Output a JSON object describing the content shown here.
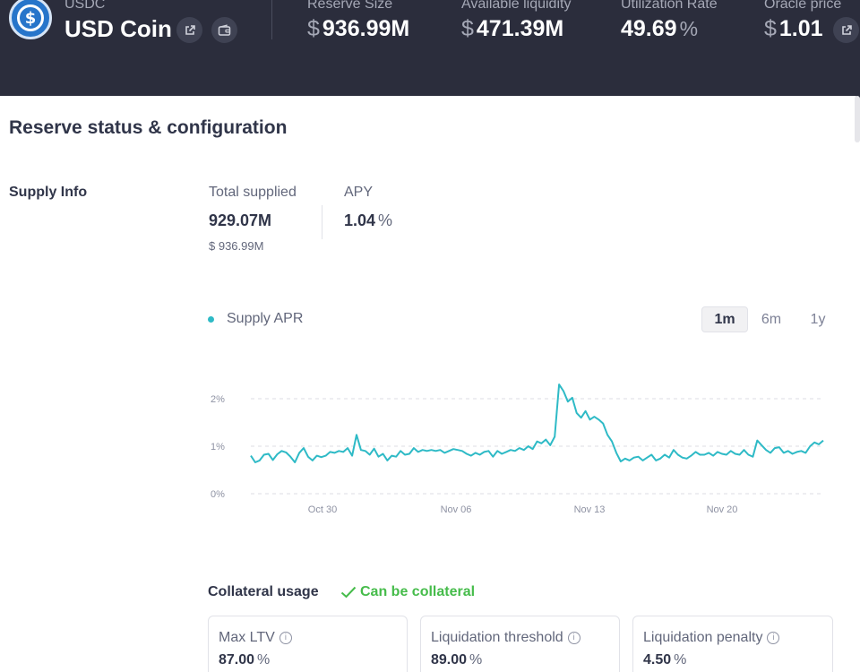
{
  "header": {
    "symbol": "USDC",
    "name": "USD Coin",
    "stats": [
      {
        "label": "Reserve Size",
        "currency": "$",
        "value": "936.99M",
        "unit": ""
      },
      {
        "label": "Available liquidity",
        "currency": "$",
        "value": "471.39M",
        "unit": ""
      },
      {
        "label": "Utilization Rate",
        "currency": "",
        "value": "49.69",
        "unit": "%"
      },
      {
        "label": "Oracle price",
        "currency": "$",
        "value": "1.01",
        "unit": ""
      }
    ]
  },
  "panel": {
    "title": "Reserve status & configuration",
    "supply_info": {
      "section_label": "Supply Info",
      "total_supplied_label": "Total supplied",
      "total_supplied_value": "929.07M",
      "total_supplied_usd": "$ 936.99M",
      "apy_label": "APY",
      "apy_value": "1.04",
      "apy_unit": "%"
    },
    "chart_controls": {
      "legend": "Supply APR",
      "ranges": [
        "1m",
        "6m",
        "1y"
      ],
      "selected_range": "1m"
    },
    "collateral": {
      "title": "Collateral usage",
      "status": "Can be collateral",
      "cards": [
        {
          "label": "Max LTV",
          "value": "87.00",
          "unit": "%"
        },
        {
          "label": "Liquidation threshold",
          "value": "89.00",
          "unit": "%"
        },
        {
          "label": "Liquidation penalty",
          "value": "4.50",
          "unit": "%"
        }
      ]
    }
  },
  "colors": {
    "header_bg": "#2b2d3c",
    "accent_line": "#2ebac6",
    "success": "#46bc4b",
    "usdc_blue": "#2775ca"
  },
  "icons": [
    "usdc-logo",
    "external-link-icon",
    "wallet-icon",
    "info-icon",
    "check-icon"
  ],
  "chart_data": {
    "type": "line",
    "series": [
      {
        "name": "Supply APR",
        "values": [
          0.8,
          0.66,
          0.7,
          0.82,
          0.84,
          0.71,
          0.83,
          0.9,
          0.87,
          0.78,
          0.66,
          0.86,
          0.96,
          0.78,
          0.7,
          0.8,
          0.77,
          0.8,
          0.88,
          0.86,
          0.9,
          0.88,
          0.96,
          0.8,
          1.24,
          0.92,
          0.9,
          0.82,
          0.95,
          0.78,
          0.84,
          0.7,
          0.8,
          0.78,
          0.9,
          0.82,
          0.84,
          0.96,
          0.88,
          0.92,
          0.9,
          0.92,
          0.9,
          0.92,
          0.86,
          0.9,
          0.94,
          0.92,
          0.9,
          0.84,
          0.8,
          0.86,
          0.82,
          0.88,
          0.9,
          0.78,
          0.9,
          0.84,
          0.88,
          0.92,
          0.9,
          0.96,
          0.92,
          1.0,
          0.94,
          1.1,
          1.06,
          1.14,
          1.02,
          1.2,
          2.3,
          2.16,
          1.94,
          2.02,
          1.7,
          1.6,
          1.74,
          1.56,
          1.62,
          1.56,
          1.48,
          1.24,
          1.1,
          0.86,
          0.68,
          0.74,
          0.7,
          0.76,
          0.78,
          0.7,
          0.76,
          0.82,
          0.7,
          0.74,
          0.82,
          0.76,
          0.92,
          0.82,
          0.76,
          0.74,
          0.8,
          0.88,
          0.82,
          0.82,
          0.86,
          0.8,
          0.88,
          0.84,
          0.82,
          0.9,
          0.84,
          0.82,
          0.92,
          0.82,
          0.78,
          1.12,
          1.02,
          0.92,
          0.86,
          0.96,
          0.98,
          0.86,
          0.9,
          0.84,
          0.88,
          0.9,
          0.86,
          1.0,
          1.08,
          1.04,
          1.12
        ]
      }
    ],
    "x_ticks": [
      "Oct 30",
      "Nov 06",
      "Nov 13",
      "Nov 20"
    ],
    "y_ticks": [
      "0%",
      "1%",
      "2%"
    ],
    "ylim": [
      0,
      2.5
    ],
    "grid": true,
    "title": "",
    "xlabel": "",
    "ylabel": ""
  }
}
